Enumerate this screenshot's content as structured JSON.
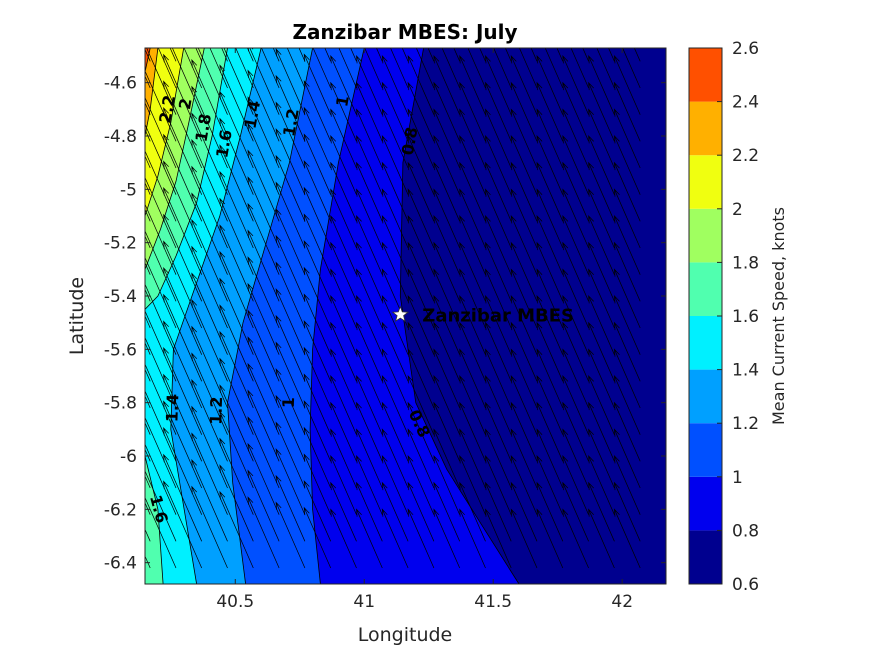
{
  "chart_data": {
    "type": "contour",
    "title": "Zanzibar MBES: July",
    "xlabel": "Longitude",
    "ylabel": "Latitude",
    "xlim": [
      40.15,
      42.17
    ],
    "ylim": [
      -6.48,
      -4.47
    ],
    "x_ticks": [
      {
        "v": 40.5,
        "label": "40.5"
      },
      {
        "v": 41,
        "label": "41"
      },
      {
        "v": 41.5,
        "label": "41.5"
      },
      {
        "v": 42,
        "label": "42"
      }
    ],
    "y_ticks": [
      {
        "v": -4.6,
        "label": "-4.6"
      },
      {
        "v": -4.8,
        "label": "-4.8"
      },
      {
        "v": -5,
        "label": "-5"
      },
      {
        "v": -5.2,
        "label": "-5.2"
      },
      {
        "v": -5.4,
        "label": "-5.4"
      },
      {
        "v": -5.6,
        "label": "-5.6"
      },
      {
        "v": -5.8,
        "label": "-5.8"
      },
      {
        "v": -6,
        "label": "-6"
      },
      {
        "v": -6.2,
        "label": "-6.2"
      },
      {
        "v": -6.4,
        "label": "-6.4"
      }
    ],
    "colorbar": {
      "label": "Mean Current Speed, knots",
      "levels": [
        0.6,
        0.8,
        1.0,
        1.2,
        1.4,
        1.6,
        1.8,
        2.0,
        2.2,
        2.4,
        2.6
      ],
      "tick_labels": [
        "0.6",
        "0.8",
        "1",
        "1.2",
        "1.4",
        "1.6",
        "1.8",
        "2",
        "2.2",
        "2.4",
        "2.6"
      ],
      "colors": [
        "#00008f",
        "#0000ee",
        "#0050ff",
        "#00a0ff",
        "#00f0ff",
        "#50ffaf",
        "#a0ff60",
        "#f0ff10",
        "#ffb000",
        "#ff5000"
      ]
    },
    "contour_boundaries": [
      {
        "level": 0.8,
        "lon": [
          41.23,
          41.15,
          41.14,
          41.2,
          41.32,
          41.45,
          41.6
        ],
        "lat": [
          -4.47,
          -4.9,
          -5.4,
          -5.8,
          -6.05,
          -6.25,
          -6.48
        ]
      },
      {
        "level": 1.0,
        "lon": [
          41.0,
          40.9,
          40.83,
          40.8,
          40.79,
          40.8,
          40.83
        ],
        "lat": [
          -4.47,
          -4.9,
          -5.3,
          -5.6,
          -5.9,
          -6.2,
          -6.48
        ]
      },
      {
        "level": 1.2,
        "lon": [
          40.8,
          40.71,
          40.62,
          40.53,
          40.47,
          40.49,
          40.54
        ],
        "lat": [
          -4.47,
          -4.9,
          -5.2,
          -5.5,
          -5.8,
          -6.1,
          -6.48
        ]
      },
      {
        "level": 1.4,
        "lon": [
          40.6,
          40.52,
          40.44,
          40.35,
          40.26,
          40.25,
          40.35
        ],
        "lat": [
          -4.47,
          -4.8,
          -5.1,
          -5.35,
          -5.6,
          -5.9,
          -6.48
        ]
      },
      {
        "level": 1.6,
        "lon": [
          40.47,
          40.41,
          40.35,
          40.27,
          40.2,
          40.15
        ],
        "lat": [
          -4.47,
          -4.8,
          -5.05,
          -5.25,
          -5.4,
          -5.45
        ]
      },
      {
        "level": 1.6,
        "lon": [
          40.22,
          40.2,
          40.15
        ],
        "lat": [
          -6.48,
          -6.2,
          -6.0
        ]
      },
      {
        "level": 1.8,
        "lon": [
          40.38,
          40.32,
          40.27,
          40.21,
          40.15
        ],
        "lat": [
          -4.47,
          -4.75,
          -4.97,
          -5.15,
          -5.3
        ]
      },
      {
        "level": 2.0,
        "lon": [
          40.3,
          40.25,
          40.2,
          40.15
        ],
        "lat": [
          -4.47,
          -4.75,
          -4.95,
          -5.1
        ]
      },
      {
        "level": 2.2,
        "lon": [
          40.2,
          40.17,
          40.15
        ],
        "lat": [
          -4.47,
          -4.7,
          -4.8
        ]
      },
      {
        "level": 2.4,
        "lon": [
          40.17,
          40.15
        ],
        "lat": [
          -4.47,
          -4.56
        ]
      }
    ],
    "contour_labels": [
      {
        "text": "2.2",
        "lon": 40.24,
        "lat": -4.7,
        "angle": -80
      },
      {
        "text": "2",
        "lon": 40.31,
        "lat": -4.68,
        "angle": -80
      },
      {
        "text": "1.8",
        "lon": 40.38,
        "lat": -4.77,
        "angle": -80
      },
      {
        "text": "1.6",
        "lon": 40.46,
        "lat": -4.83,
        "angle": -80
      },
      {
        "text": "1.4",
        "lon": 40.57,
        "lat": -4.72,
        "angle": -80
      },
      {
        "text": "1.2",
        "lon": 40.72,
        "lat": -4.75,
        "angle": -80
      },
      {
        "text": "1",
        "lon": 40.92,
        "lat": -4.67,
        "angle": -80
      },
      {
        "text": "0.8",
        "lon": 41.18,
        "lat": -4.82,
        "angle": -80
      },
      {
        "text": "1.4",
        "lon": 40.26,
        "lat": -5.82,
        "angle": -88
      },
      {
        "text": "1.2",
        "lon": 40.43,
        "lat": -5.83,
        "angle": -88
      },
      {
        "text": "1",
        "lon": 40.71,
        "lat": -5.8,
        "angle": -88
      },
      {
        "text": "0.8",
        "lon": 41.21,
        "lat": -5.88,
        "angle": 65
      },
      {
        "text": "1.6",
        "lon": 40.2,
        "lat": -6.2,
        "angle": 75
      }
    ],
    "vectors": {
      "description": "Current vectors directed north-northwest, larger near the west coast",
      "lon_start": 40.17,
      "lon_step": 0.1,
      "count_lon": 20,
      "lat_start": -4.52,
      "lat_step": -0.1,
      "count_lat": 20,
      "u_base": -0.1,
      "v_base": 0.22
    },
    "site": {
      "name": "Zanzibar MBES",
      "lon": 41.14,
      "lat": -5.47
    }
  }
}
